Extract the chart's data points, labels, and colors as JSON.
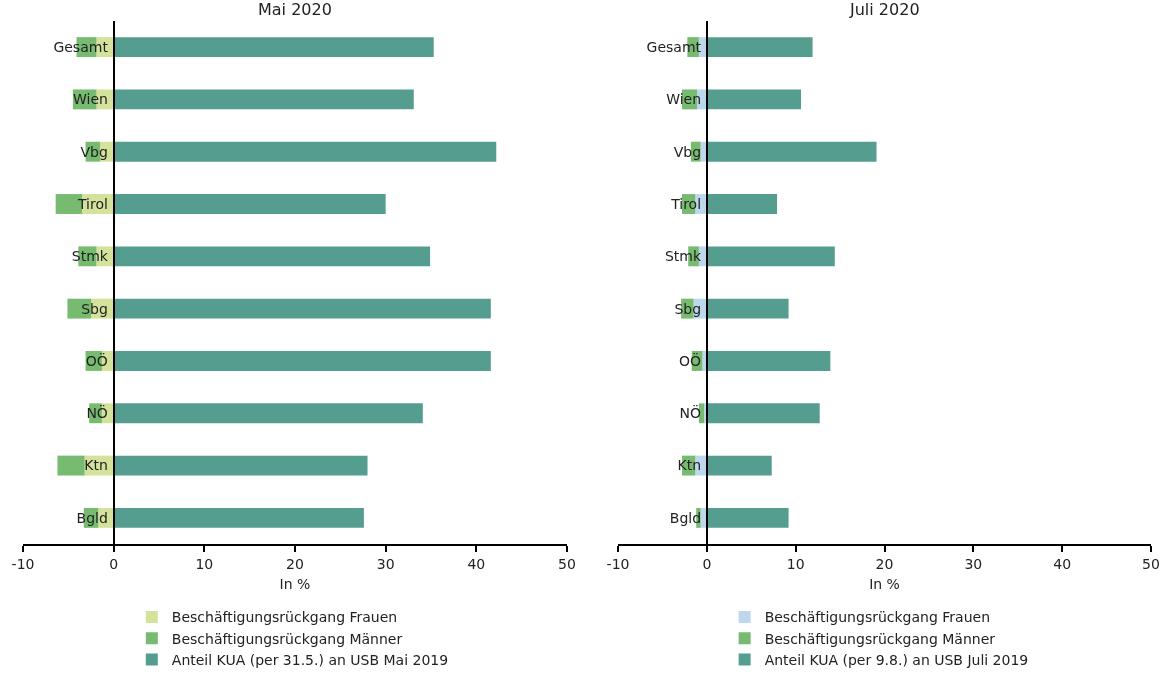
{
  "chart_data": [
    {
      "type": "bar",
      "orientation": "horizontal",
      "stacked": true,
      "title": "Mai 2020",
      "xlabel": "In %",
      "categories": [
        "Gesamt",
        "Wien",
        "Vbg",
        "Tirol",
        "Stmk",
        "Sbg",
        "OÖ",
        "NÖ",
        "Ktn",
        "Bgld"
      ],
      "series": [
        {
          "name": "Beschäftigungsrückgang Frauen",
          "color": "#d4e29b",
          "values": [
            -1.9,
            -1.9,
            -1.5,
            -3.5,
            -1.9,
            -2.5,
            -1.3,
            -1.3,
            -3.2,
            -1.7
          ]
        },
        {
          "name": "Beschäftigungsrückgang Männer",
          "color": "#76bb6f",
          "values": [
            -2.2,
            -2.6,
            -1.6,
            -2.9,
            -2.0,
            -2.6,
            -1.8,
            -1.4,
            -3.0,
            -1.6
          ]
        },
        {
          "name": "Anteil KUA (per 31.5.) an USB Mai 2019",
          "color": "#559d8f",
          "values": [
            35.3,
            33.1,
            42.2,
            30.0,
            34.9,
            41.6,
            41.6,
            34.1,
            28.0,
            27.6
          ]
        }
      ],
      "xlim": [
        -10,
        50
      ],
      "xticks": [
        -10,
        0,
        10,
        20,
        30,
        40,
        50
      ],
      "grid": false,
      "legend": "bottom"
    },
    {
      "type": "bar",
      "orientation": "horizontal",
      "stacked": true,
      "title": "Juli 2020",
      "xlabel": "In %",
      "categories": [
        "Gesamt",
        "Wien",
        "Vbg",
        "Tirol",
        "Stmk",
        "Sbg",
        "OÖ",
        "NÖ",
        "Ktn",
        "Bgld"
      ],
      "series": [
        {
          "name": "Beschäftigungsrückgang Frauen",
          "color": "#bdd7ee",
          "values": [
            -0.9,
            -1.1,
            -0.7,
            -1.3,
            -0.9,
            -1.5,
            -0.5,
            -0.3,
            -1.3,
            -0.7
          ]
        },
        {
          "name": "Beschäftigungsrückgang Männer",
          "color": "#76bb6f",
          "values": [
            -1.3,
            -1.7,
            -1.1,
            -1.5,
            -1.2,
            -1.4,
            -1.2,
            -0.6,
            -1.5,
            -0.5
          ]
        },
        {
          "name": "Anteil KUA (per 9.8.) an USB Juli 2019",
          "color": "#559d8f",
          "values": [
            11.9,
            10.6,
            19.1,
            7.9,
            14.4,
            9.2,
            13.9,
            12.7,
            7.3,
            9.2
          ]
        }
      ],
      "xlim": [
        -10,
        50
      ],
      "xticks": [
        -10,
        0,
        10,
        20,
        30,
        40,
        50
      ],
      "grid": false,
      "legend": "bottom"
    }
  ]
}
